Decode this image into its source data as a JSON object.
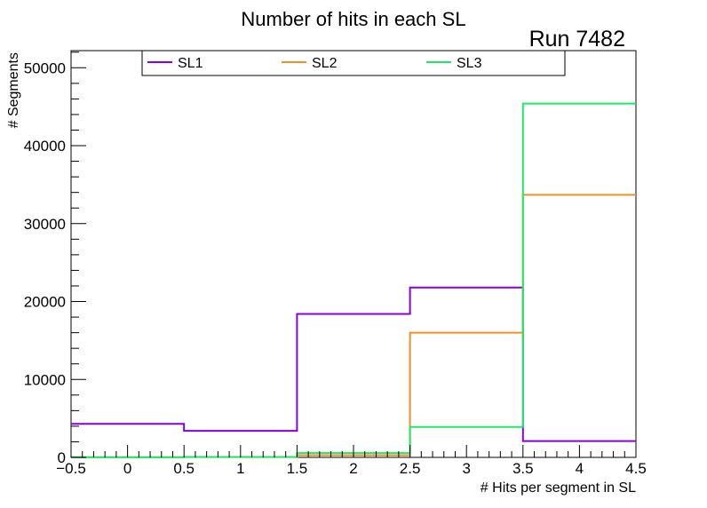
{
  "chart_data": {
    "type": "step-histogram",
    "title": "Number of hits in each SL",
    "annotation": "Run 7482",
    "xlabel": "# Hits per segment in SL",
    "ylabel": "# Segments",
    "xlim": [
      -0.5,
      4.5
    ],
    "ylim": [
      0,
      52200
    ],
    "bin_edges": [
      -0.5,
      0.5,
      1.5,
      2.5,
      3.5,
      4.5
    ],
    "x_ticks": [
      {
        "value": -0.5,
        "label": "−0.5"
      },
      {
        "value": 0,
        "label": "0"
      },
      {
        "value": 0.5,
        "label": "0.5"
      },
      {
        "value": 1,
        "label": "1"
      },
      {
        "value": 1.5,
        "label": "1.5"
      },
      {
        "value": 2,
        "label": "2"
      },
      {
        "value": 2.5,
        "label": "2.5"
      },
      {
        "value": 3,
        "label": "3"
      },
      {
        "value": 3.5,
        "label": "3.5"
      },
      {
        "value": 4,
        "label": "4"
      },
      {
        "value": 4.5,
        "label": "4.5"
      }
    ],
    "y_ticks": [
      {
        "value": 0,
        "label": "0"
      },
      {
        "value": 10000,
        "label": "10000"
      },
      {
        "value": 20000,
        "label": "20000"
      },
      {
        "value": 30000,
        "label": "30000"
      },
      {
        "value": 40000,
        "label": "40000"
      },
      {
        "value": 50000,
        "label": "50000"
      }
    ],
    "legend_position": "top",
    "series": [
      {
        "name": "SL1",
        "color": "#8800dd",
        "values": [
          4300,
          3400,
          18400,
          21800,
          2100
        ]
      },
      {
        "name": "SL2",
        "color": "#f0902a",
        "values": [
          30,
          60,
          270,
          16000,
          33700
        ]
      },
      {
        "name": "SL3",
        "color": "#1ee86a",
        "values": [
          10,
          40,
          550,
          3900,
          45400
        ]
      }
    ]
  }
}
